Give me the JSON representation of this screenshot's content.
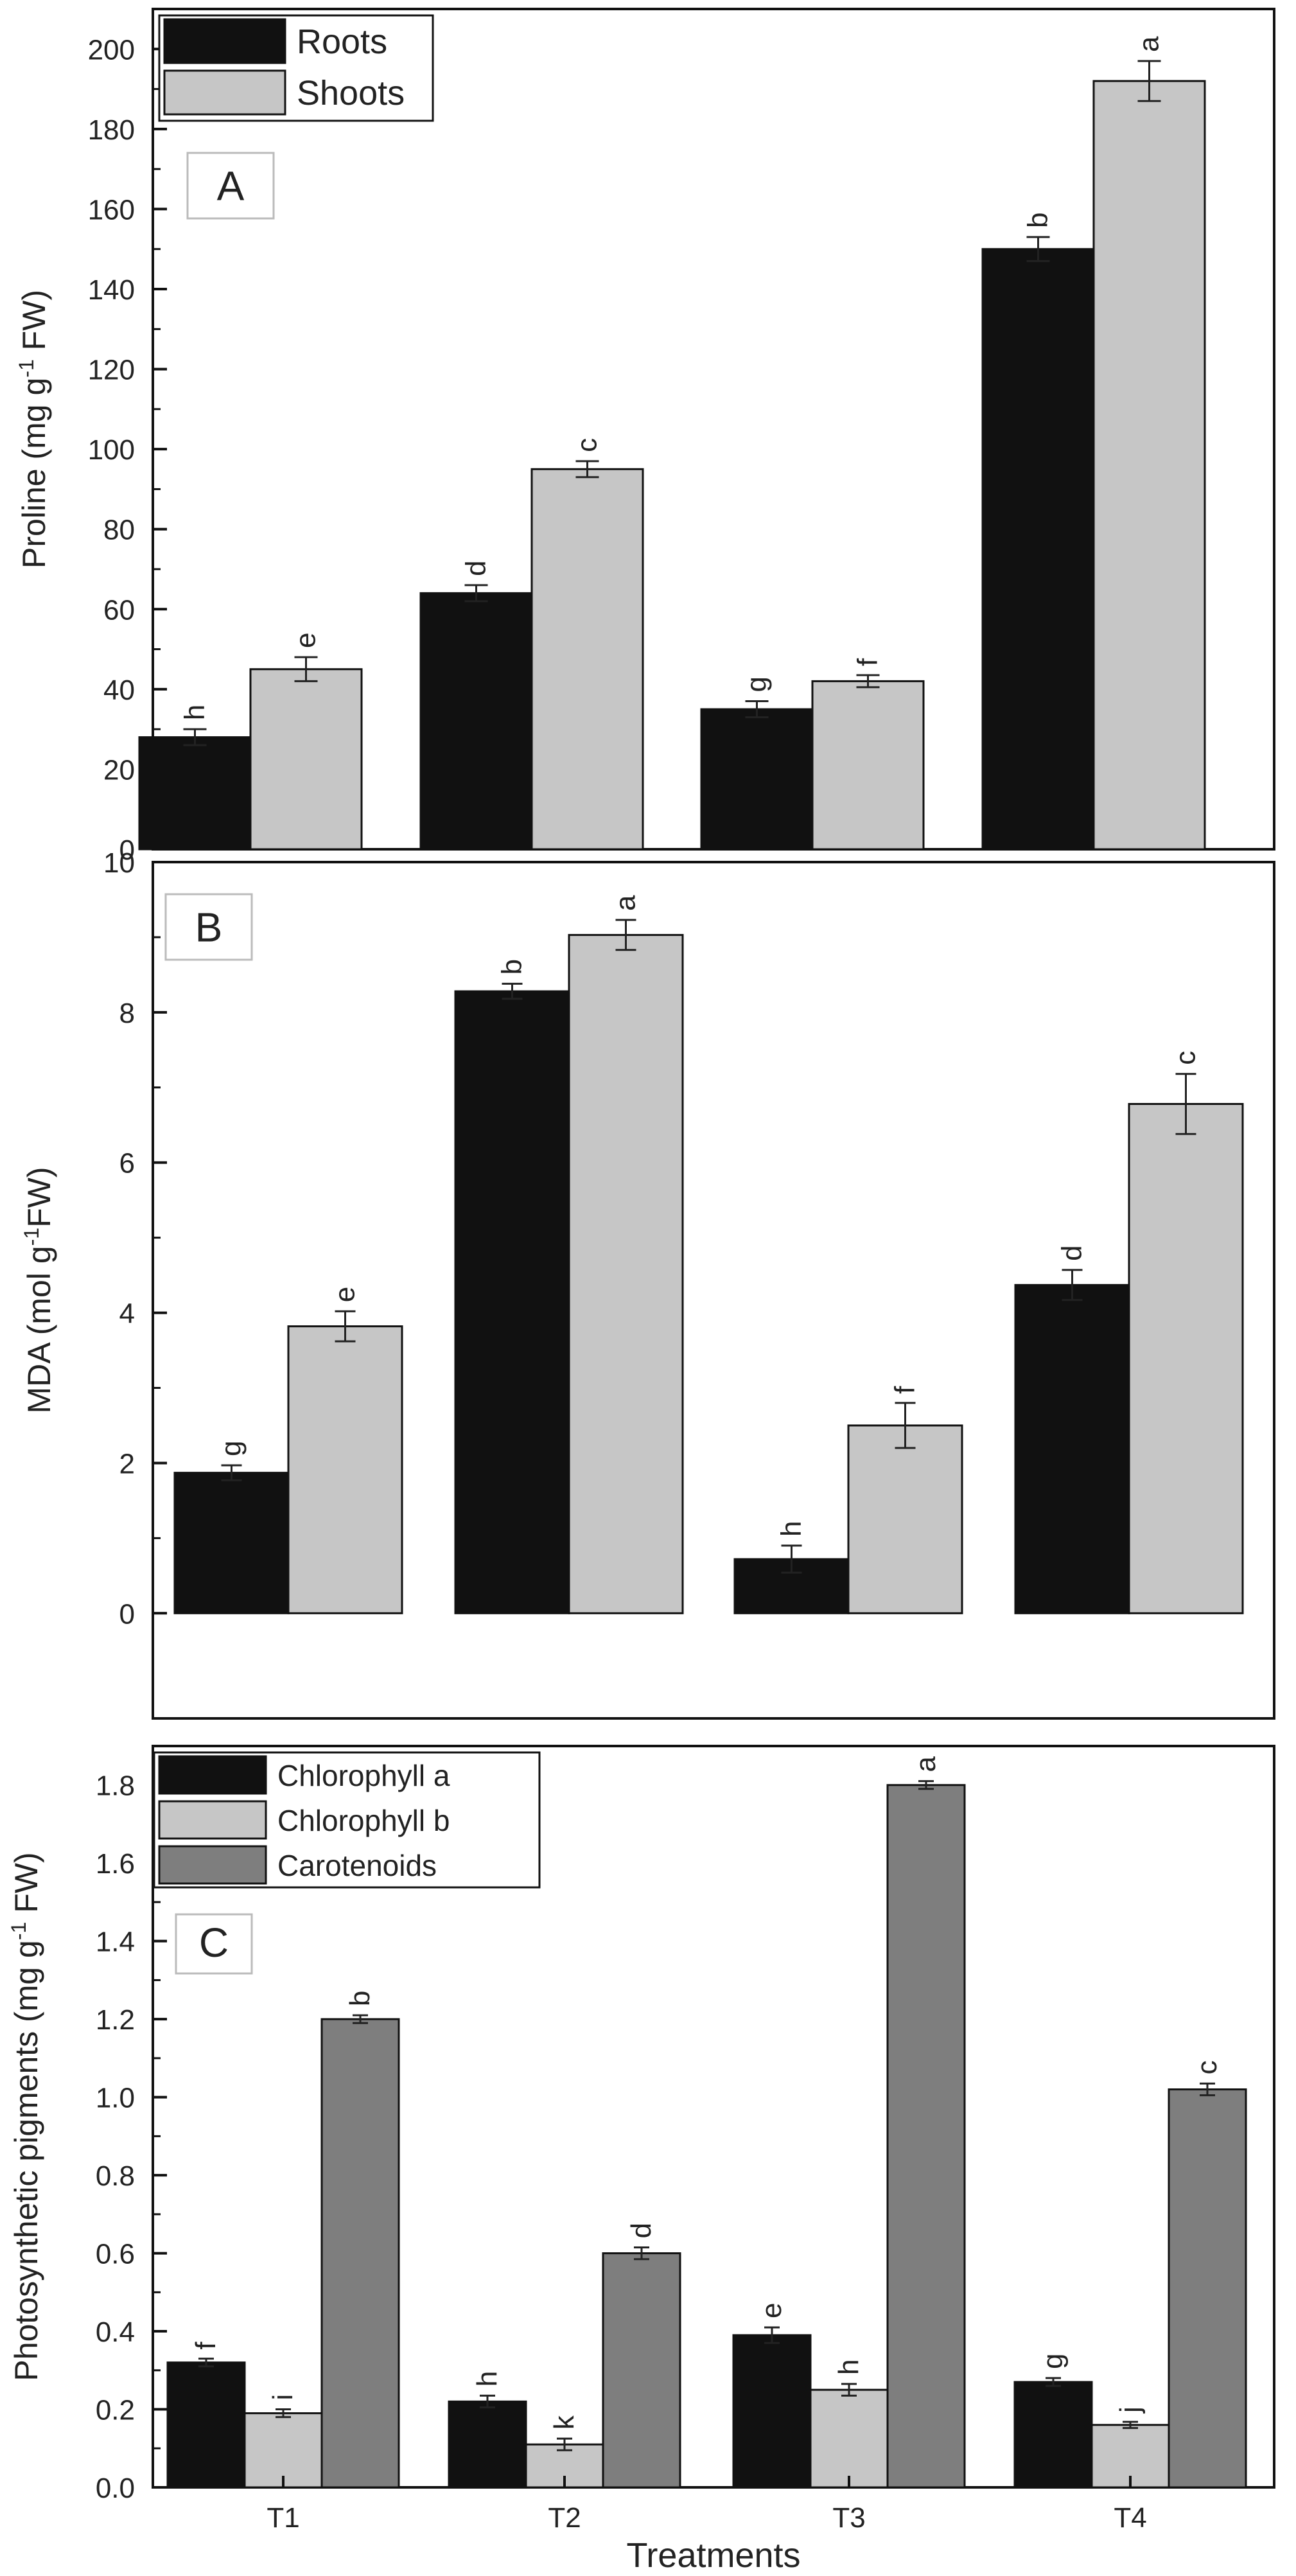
{
  "chart_data": [
    {
      "panel": "A",
      "type": "bar",
      "categories": [
        "T1",
        "T2",
        "T3",
        "T4"
      ],
      "series": [
        {
          "name": "Roots",
          "color": "#111111",
          "values": [
            28,
            64,
            35,
            150
          ],
          "errors": [
            2,
            2,
            2,
            3
          ],
          "letters": [
            "h",
            "d",
            "g",
            "b"
          ]
        },
        {
          "name": "Shoots",
          "color": "#c6c6c6",
          "values": [
            45,
            95,
            42,
            192
          ],
          "errors": [
            3,
            2,
            1.5,
            5
          ],
          "letters": [
            "e",
            "c",
            "f",
            "a"
          ]
        }
      ],
      "ylabel": "Proline (mg g-1 FW)",
      "ylim": [
        0,
        210
      ],
      "yticks": [
        0,
        20,
        40,
        60,
        80,
        100,
        120,
        140,
        160,
        180,
        200
      ],
      "legend_position": "top-left",
      "grid": false
    },
    {
      "panel": "B",
      "type": "bar",
      "categories": [
        "T1",
        "T2",
        "T3",
        "T4"
      ],
      "series": [
        {
          "color": "#111111",
          "values": [
            1.87,
            8.28,
            0.72,
            4.37
          ],
          "errors": [
            0.1,
            0.1,
            0.18,
            0.2
          ],
          "letters": [
            "g",
            "b",
            "h",
            "d"
          ]
        },
        {
          "color": "#c6c6c6",
          "values": [
            3.82,
            9.03,
            2.5,
            6.78
          ],
          "errors": [
            0.2,
            0.2,
            0.3,
            0.4
          ],
          "letters": [
            "e",
            "a",
            "f",
            "c"
          ]
        }
      ],
      "ylabel": "MDA (mol g-1FW)",
      "ylim": [
        -1.4,
        10
      ],
      "yticks": [
        0,
        2,
        4,
        6,
        8,
        10
      ],
      "grid": false
    },
    {
      "panel": "C",
      "type": "bar",
      "categories": [
        "T1",
        "T2",
        "T3",
        "T4"
      ],
      "series": [
        {
          "name": "Chlorophyll a",
          "color": "#111111",
          "values": [
            0.32,
            0.22,
            0.39,
            0.27
          ],
          "errors": [
            0.01,
            0.015,
            0.02,
            0.01
          ],
          "letters": [
            "f",
            "h",
            "e",
            "g"
          ]
        },
        {
          "name": "Chlorophyll b",
          "color": "#c6c6c6",
          "values": [
            0.19,
            0.11,
            0.25,
            0.16
          ],
          "errors": [
            0.01,
            0.015,
            0.015,
            0.008
          ],
          "letters": [
            "i",
            "k",
            "h",
            "j"
          ]
        },
        {
          "name": "Carotenoids",
          "color": "#7e7e7e",
          "values": [
            1.2,
            0.6,
            1.8,
            1.02
          ],
          "errors": [
            0.01,
            0.015,
            0.01,
            0.015
          ],
          "letters": [
            "b",
            "d",
            "a",
            "c"
          ]
        }
      ],
      "xlabel": "Treatments",
      "ylabel": "Photosynthetic pigments (mg g-1 FW)",
      "ylim": [
        0,
        1.9
      ],
      "yticks": [
        0.0,
        0.2,
        0.4,
        0.6,
        0.8,
        1.0,
        1.2,
        1.4,
        1.6,
        1.8
      ],
      "ytick_decimals": 1,
      "legend_position": "top-left",
      "grid": false
    }
  ]
}
